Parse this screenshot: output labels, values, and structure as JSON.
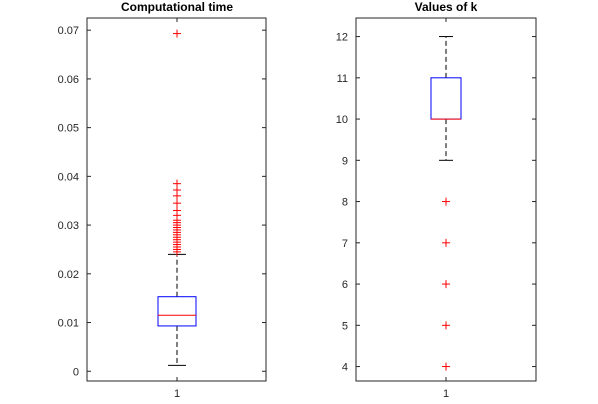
{
  "chart_data": [
    {
      "type": "box",
      "title": "Computational time",
      "categories": [
        "1"
      ],
      "ylim": [
        -0.002,
        0.0725
      ],
      "yticks": [
        0,
        0.01,
        0.02,
        0.03,
        0.04,
        0.05,
        0.06,
        0.07
      ],
      "ytick_labels": [
        "0",
        "0.01",
        "0.02",
        "0.03",
        "0.04",
        "0.05",
        "0.06",
        "0.07"
      ],
      "box": {
        "q1": 0.0093,
        "median": 0.0115,
        "q3": 0.0153,
        "whisker_low": 0.0012,
        "whisker_high": 0.024
      },
      "outliers": [
        0.0245,
        0.025,
        0.0255,
        0.026,
        0.0265,
        0.027,
        0.0275,
        0.028,
        0.0285,
        0.029,
        0.0295,
        0.03,
        0.0305,
        0.031,
        0.032,
        0.033,
        0.0345,
        0.036,
        0.0372,
        0.0385,
        0.0693
      ],
      "colors": {
        "box": "#0000ff",
        "median": "#ff0000",
        "whisker": "#000000",
        "outlier": "#ff0000",
        "axis": "#262626"
      }
    },
    {
      "type": "box",
      "title": "Values of k",
      "categories": [
        "1"
      ],
      "ylim": [
        3.65,
        12.45
      ],
      "yticks": [
        4,
        5,
        6,
        7,
        8,
        9,
        10,
        11,
        12
      ],
      "ytick_labels": [
        "4",
        "5",
        "6",
        "7",
        "8",
        "9",
        "10",
        "11",
        "12"
      ],
      "box": {
        "q1": 10,
        "median": 10,
        "q3": 11,
        "whisker_low": 9,
        "whisker_high": 12
      },
      "outliers": [
        4,
        5,
        6,
        7,
        8
      ],
      "colors": {
        "box": "#0000ff",
        "median": "#ff0000",
        "whisker": "#000000",
        "outlier": "#ff0000",
        "axis": "#262626"
      }
    }
  ]
}
